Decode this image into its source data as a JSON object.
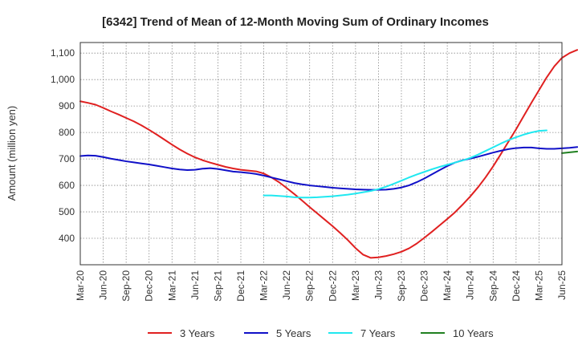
{
  "chart_data": {
    "type": "line",
    "title": "[6342]  Trend of Mean of 12-Month Moving Sum of Ordinary Incomes",
    "xlabel": "",
    "ylabel": "Amount (million yen)",
    "ylim": [
      300,
      1140
    ],
    "yticks": [
      400,
      500,
      600,
      700,
      800,
      900,
      1000,
      1100
    ],
    "ytick_labels": [
      "400",
      "500",
      "600",
      "700",
      "800",
      "900",
      "1,000",
      "1,100"
    ],
    "x_start": "Mar-20",
    "x_end": "Jun-25",
    "x_tick_labels": [
      "Mar-20",
      "Jun-20",
      "Sep-20",
      "Dec-20",
      "Mar-21",
      "Jun-21",
      "Sep-21",
      "Dec-21",
      "Mar-22",
      "Jun-22",
      "Sep-22",
      "Dec-22",
      "Mar-23",
      "Jun-23",
      "Sep-23",
      "Dec-23",
      "Mar-24",
      "Jun-24",
      "Sep-24",
      "Dec-24",
      "Mar-25",
      "Jun-25"
    ],
    "grid": true,
    "legend_position": "bottom",
    "series": [
      {
        "name": "3 Years",
        "color": "#e02020",
        "start_index": 0,
        "values": [
          918,
          912,
          905,
          893,
          880,
          868,
          855,
          842,
          827,
          810,
          792,
          773,
          754,
          736,
          720,
          706,
          695,
          686,
          678,
          670,
          664,
          659,
          656,
          653,
          645,
          630,
          612,
          590,
          567,
          543,
          518,
          494,
          470,
          446,
          420,
          393,
          363,
          338,
          326,
          328,
          333,
          340,
          349,
          362,
          380,
          402,
          425,
          449,
          473,
          498,
          527,
          558,
          592,
          630,
          672,
          718,
          765,
          812,
          862,
          912,
          960,
          1008,
          1050,
          1082,
          1100,
          1112
        ]
      },
      {
        "name": "5 Years",
        "color": "#1010c8",
        "start_index": 0,
        "values": [
          711,
          713,
          712,
          707,
          701,
          696,
          691,
          687,
          683,
          679,
          674,
          669,
          664,
          660,
          658,
          659,
          663,
          665,
          662,
          657,
          652,
          650,
          647,
          643,
          637,
          630,
          623,
          616,
          609,
          604,
          600,
          597,
          594,
          591,
          589,
          587,
          585,
          584,
          583,
          583,
          584,
          587,
          592,
          600,
          612,
          626,
          642,
          658,
          673,
          686,
          695,
          701,
          708,
          716,
          724,
          731,
          737,
          741,
          743,
          743,
          740,
          738,
          738,
          740,
          742,
          745
        ]
      },
      {
        "name": "7 Years",
        "color": "#20e8f0",
        "start_index": 24,
        "values": [
          562,
          562,
          560,
          558,
          555,
          554,
          554,
          555,
          557,
          559,
          562,
          565,
          569,
          574,
          579,
          586,
          595,
          606,
          618,
          630,
          641,
          651,
          661,
          670,
          678,
          686,
          694,
          704,
          716,
          730,
          744,
          758,
          771,
          782,
          792,
          800,
          806,
          808
        ]
      },
      {
        "name": "10 Years",
        "color": "#208020",
        "start_index": 63,
        "values": [
          722,
          725,
          728
        ]
      }
    ]
  }
}
